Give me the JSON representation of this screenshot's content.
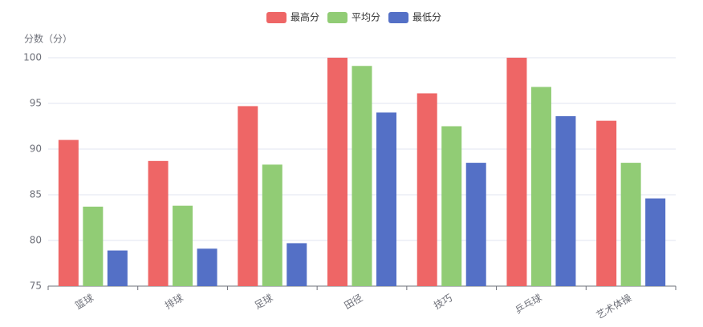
{
  "chart_data": {
    "type": "bar",
    "y_label": "分数（分）",
    "categories": [
      "篮球",
      "排球",
      "足球",
      "田径",
      "技巧",
      "乒乓球",
      "艺术体操"
    ],
    "series": [
      {
        "name": "最高分",
        "color": "#ee6666",
        "values": [
          91.0,
          88.7,
          94.7,
          100,
          96.1,
          100,
          93.1
        ]
      },
      {
        "name": "平均分",
        "color": "#91cc75",
        "values": [
          83.7,
          83.8,
          88.3,
          99.1,
          92.5,
          96.8,
          88.5
        ]
      },
      {
        "name": "最低分",
        "color": "#5470c6",
        "values": [
          78.9,
          79.1,
          79.7,
          94.0,
          88.5,
          93.6,
          84.6
        ]
      }
    ],
    "ylim": [
      75,
      100
    ],
    "yticks": [
      75,
      80,
      85,
      90,
      95,
      100
    ],
    "grid": true,
    "legend": "top"
  }
}
